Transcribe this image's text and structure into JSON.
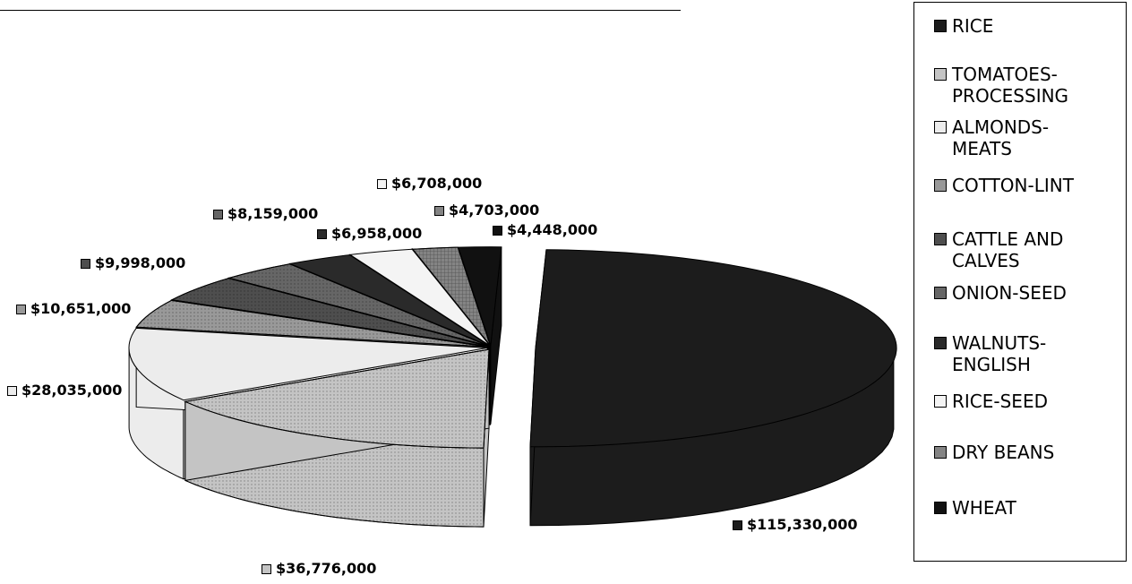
{
  "chart_data": {
    "type": "pie",
    "subtype": "3d-exploded",
    "title": "",
    "legend_position": "right",
    "slices": [
      {
        "name": "RICE",
        "value": 115330000,
        "label": "$115,330,000",
        "color": "#1c1c1c",
        "pattern": "solid"
      },
      {
        "name": "TOMATOES-PROCESSING",
        "value": 36776000,
        "label": "$36,776,000",
        "color": "#c4c4c4",
        "pattern": "dots"
      },
      {
        "name": "ALMONDS-MEATS",
        "value": 28035000,
        "label": "$28,035,000",
        "color": "#ececec",
        "pattern": "light"
      },
      {
        "name": "COTTON-LINT",
        "value": 10651000,
        "label": "$10,651,000",
        "color": "#999999",
        "pattern": "dots"
      },
      {
        "name": "CATTLE AND CALVES",
        "value": 9998000,
        "label": "$9,998,000",
        "color": "#4e4e4e",
        "pattern": "dots"
      },
      {
        "name": "ONION-SEED",
        "value": 8159000,
        "label": "$8,159,000",
        "color": "#666666",
        "pattern": "dots"
      },
      {
        "name": "WALNUTS-ENGLISH",
        "value": 6958000,
        "label": "$6,958,000",
        "color": "#2a2a2a",
        "pattern": "solid"
      },
      {
        "name": "RICE-SEED",
        "value": 6708000,
        "label": "$6,708,000",
        "color": "#f4f4f4",
        "pattern": "light"
      },
      {
        "name": "DRY BEANS",
        "value": 4703000,
        "label": "$4,703,000",
        "color": "#848484",
        "pattern": "grid"
      },
      {
        "name": "WHEAT",
        "value": 4448000,
        "label": "$4,448,000",
        "color": "#111111",
        "pattern": "solid"
      }
    ]
  },
  "legend": {
    "items": [
      {
        "line1": "RICE",
        "line2": ""
      },
      {
        "line1": "TOMATOES-",
        "line2": "PROCESSING"
      },
      {
        "line1": "ALMONDS-",
        "line2": "MEATS"
      },
      {
        "line1": "COTTON-LINT",
        "line2": ""
      },
      {
        "line1": "CATTLE AND",
        "line2": "CALVES"
      },
      {
        "line1": "ONION-SEED",
        "line2": ""
      },
      {
        "line1": "WALNUTS-",
        "line2": "ENGLISH"
      },
      {
        "line1": "RICE-SEED",
        "line2": ""
      },
      {
        "line1": "DRY BEANS",
        "line2": ""
      },
      {
        "line1": "WHEAT",
        "line2": ""
      }
    ]
  }
}
